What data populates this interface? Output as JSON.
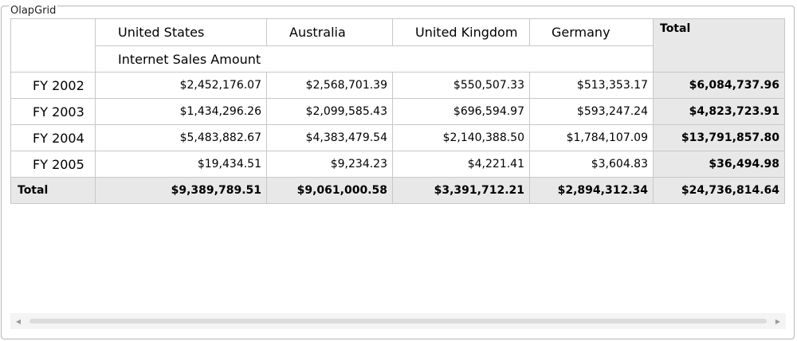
{
  "groupbox": {
    "title": "OlapGrid"
  },
  "columns": [
    "United States",
    "Australia",
    "United Kingdom",
    "Germany"
  ],
  "total_label": "Total",
  "measure": "Internet Sales Amount",
  "rows": [
    {
      "label": "FY 2002",
      "values": [
        "$2,452,176.07",
        "$2,568,701.39",
        "$550,507.33",
        "$513,353.17"
      ],
      "total": "$6,084,737.96"
    },
    {
      "label": "FY 2003",
      "values": [
        "$1,434,296.26",
        "$2,099,585.43",
        "$696,594.97",
        "$593,247.24"
      ],
      "total": "$4,823,723.91"
    },
    {
      "label": "FY 2004",
      "values": [
        "$5,483,882.67",
        "$4,383,479.54",
        "$2,140,388.50",
        "$1,784,107.09"
      ],
      "total": "$13,791,857.80"
    },
    {
      "label": "FY 2005",
      "values": [
        "$19,434.51",
        "$9,234.23",
        "$4,221.41",
        "$3,604.83"
      ],
      "total": "$36,494.98"
    }
  ],
  "grand_total": {
    "label": "Total",
    "values": [
      "$9,389,789.51",
      "$9,061,000.58",
      "$3,391,712.21",
      "$2,894,312.34"
    ],
    "total": "$24,736,814.64"
  },
  "scrollbar": {
    "left_icon": "arrow-left-icon",
    "right_icon": "arrow-right-icon"
  }
}
